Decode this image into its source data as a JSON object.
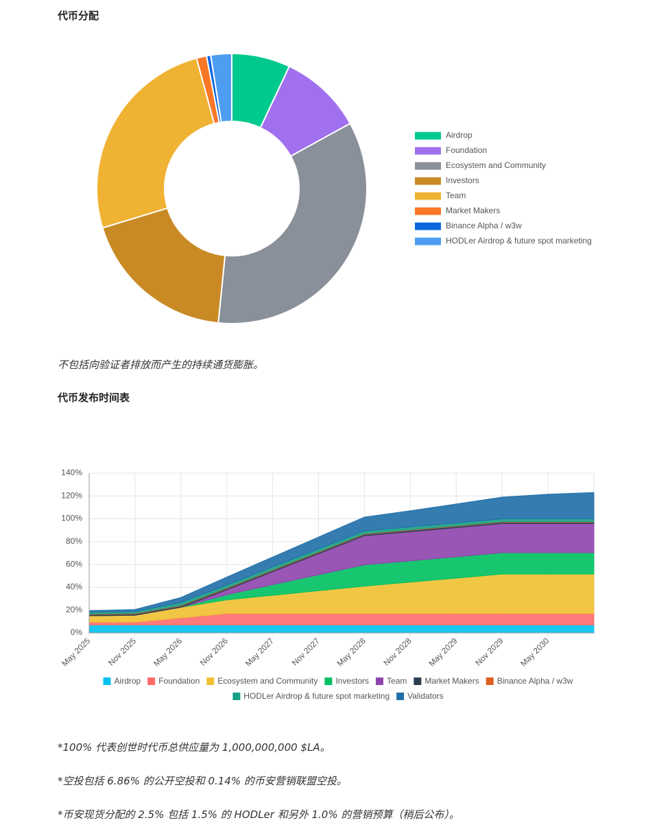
{
  "heading_allocation": "代币分配",
  "allocation_note": "不包括向验证者排放而产生的持续通货膨胀。",
  "heading_schedule": "代币发布时间表",
  "footnotes": [
    "*100% 代表创世时代币总供应量为 1,000,000,000 $LA。",
    "*空投包括 6.86% 的公开空投和 0.14% 的币安营销联盟空投。",
    "*币安现货分配的 2.5% 包括 1.5% 的 HODLer 和另外 1.0% 的营销预算（稍后公布）。"
  ],
  "chart_data": [
    {
      "type": "pie",
      "donut": true,
      "legend": "right",
      "categories": [
        "Airdrop",
        "Foundation",
        "Ecosystem and Community",
        "Investors",
        "Team",
        "Market Makers",
        "Binance Alpha / w3w",
        "HODLer Airdrop & future spot marketing"
      ],
      "values": [
        7,
        10,
        34.6,
        18.7,
        25.5,
        1.2,
        0.5,
        2.5
      ],
      "colors": [
        "#00c98d",
        "#a070ee",
        "#8a9099",
        "#c98a25",
        "#f0b232",
        "#f97726",
        "#0b66e0",
        "#4d9ef2"
      ]
    },
    {
      "type": "stacked_area",
      "legend": "bottom",
      "grid": true,
      "categories": [
        "May 2025",
        "Nov 2025",
        "May 2026",
        "Nov 2026",
        "May 2027",
        "Nov 2027",
        "May 2028",
        "Nov 2028",
        "May 2029",
        "Nov 2029",
        "May 2030",
        null
      ],
      "ylim": [
        0,
        140
      ],
      "yticks": [
        {
          "value": 0,
          "label": "0%"
        },
        {
          "value": 20,
          "label": "20%"
        },
        {
          "value": 40,
          "label": "40%"
        },
        {
          "value": 60,
          "label": "60%"
        },
        {
          "value": 80,
          "label": "80%"
        },
        {
          "value": 100,
          "label": "100%"
        },
        {
          "value": 120,
          "label": "120%"
        },
        {
          "value": 140,
          "label": "140%"
        }
      ],
      "series": [
        {
          "name": "Airdrop",
          "color": "#00c0ef",
          "values": [
            7,
            7,
            7,
            7,
            7,
            7,
            7,
            7,
            7,
            7,
            7,
            7
          ]
        },
        {
          "name": "Foundation",
          "color": "#ff6b6b",
          "values": [
            2.5,
            2.5,
            6.25,
            10,
            10,
            10,
            10,
            10,
            10,
            10,
            10,
            10
          ]
        },
        {
          "name": "Ecosystem and Community",
          "color": "#f0c030",
          "values": [
            5.5,
            6,
            9.2,
            12,
            16,
            20,
            24,
            27.5,
            31,
            34.6,
            34.6,
            34.6
          ]
        },
        {
          "name": "Investors",
          "color": "#00c060",
          "values": [
            0,
            0,
            0,
            4.5,
            9.3,
            14,
            18.7,
            18.7,
            18.7,
            18.7,
            18.7,
            18.7
          ]
        },
        {
          "name": "Team",
          "color": "#8e44ad",
          "values": [
            0,
            0,
            0,
            4.25,
            11.3,
            18.4,
            25.5,
            25.5,
            25.5,
            25.5,
            25.5,
            25.5
          ]
        },
        {
          "name": "Market Makers",
          "color": "#2c3e50",
          "values": [
            1.2,
            1.2,
            1.2,
            1.2,
            1.2,
            1.2,
            1.2,
            1.2,
            1.2,
            1.2,
            1.2,
            1.2
          ]
        },
        {
          "name": "Binance Alpha / w3w",
          "color": "#e06020",
          "values": [
            0.5,
            0.5,
            0.5,
            0.5,
            0.5,
            0.5,
            0.5,
            0.5,
            0.5,
            0.5,
            0.5,
            0.5
          ]
        },
        {
          "name": "HODLer Airdrop & future spot marketing",
          "color": "#16a085",
          "values": [
            1.5,
            1.5,
            2.5,
            2.5,
            2.5,
            2.5,
            2.5,
            2.5,
            2.5,
            2.5,
            2.5,
            2.5
          ]
        },
        {
          "name": "Validators",
          "color": "#1f6fa8",
          "values": [
            1.3,
            1.8,
            4.4,
            7,
            8.7,
            10.4,
            12.1,
            14.1,
            16.6,
            19,
            21.5,
            23
          ]
        }
      ]
    }
  ]
}
